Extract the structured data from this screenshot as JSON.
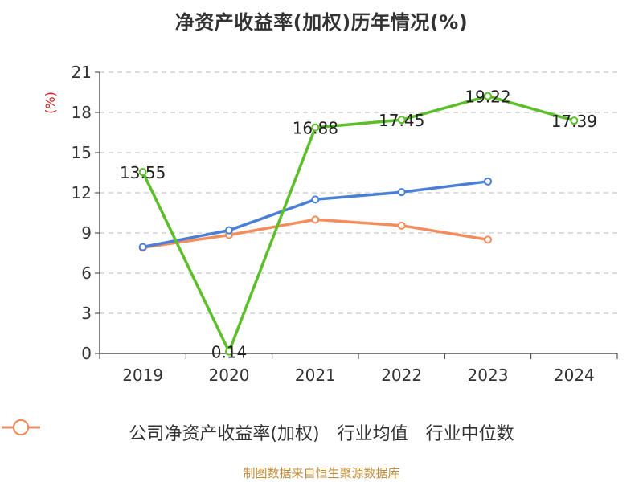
{
  "chart_data": {
    "type": "line",
    "title": "净资产收益率(加权)历年情况(%)",
    "ylabel": "(%)",
    "xlabel": "",
    "categories": [
      "2019",
      "2020",
      "2021",
      "2022",
      "2023",
      "2024"
    ],
    "ylim": [
      0,
      21
    ],
    "yticks": [
      0,
      3,
      6,
      9,
      12,
      15,
      18,
      21
    ],
    "grid": true,
    "legend_position": "bottom",
    "series": [
      {
        "name": "公司净资产收益率(加权)",
        "color": "#5cbf2a",
        "values": [
          13.55,
          0.14,
          16.88,
          17.45,
          19.22,
          17.39
        ],
        "labels": [
          "13.55",
          "0.14",
          "16.88",
          "17.45",
          "19.22",
          "17.39"
        ],
        "show_labels": true
      },
      {
        "name": "行业均值",
        "color": "#4a7fd6",
        "values": [
          7.95,
          9.2,
          11.5,
          12.05,
          12.85,
          null
        ],
        "show_labels": false
      },
      {
        "name": "行业中位数",
        "color": "#f48c5c",
        "values": [
          7.9,
          8.85,
          10.0,
          9.55,
          8.5,
          null
        ],
        "show_labels": false
      }
    ]
  },
  "source": "制图数据来自恒生聚源数据库"
}
